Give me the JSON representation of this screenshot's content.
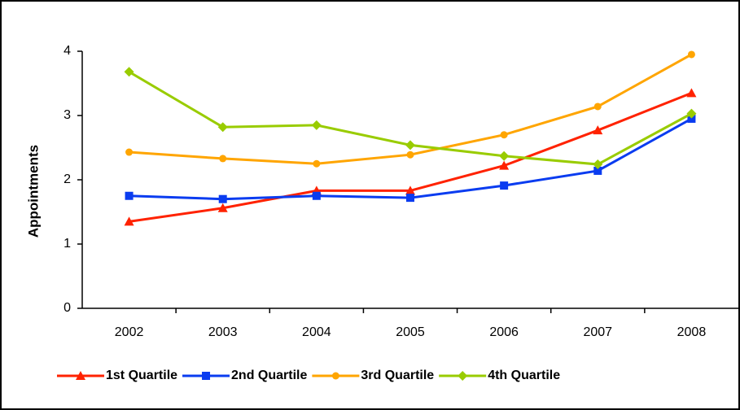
{
  "chart_data": {
    "type": "line",
    "y_label": "Appointments",
    "categories": [
      "2002",
      "2003",
      "2004",
      "2005",
      "2006",
      "2007",
      "2008"
    ],
    "series": [
      {
        "name": "1st Quartile",
        "color": "#ff2200",
        "marker": "triangle",
        "values": [
          1.35,
          1.56,
          1.83,
          1.83,
          2.22,
          2.77,
          3.35
        ]
      },
      {
        "name": "2nd Quartile",
        "color": "#0a3cf0",
        "marker": "square",
        "values": [
          1.75,
          1.7,
          1.75,
          1.72,
          1.91,
          2.14,
          2.95
        ]
      },
      {
        "name": "3rd Quartile",
        "color": "#ffa500",
        "marker": "circle",
        "values": [
          2.43,
          2.33,
          2.25,
          2.39,
          2.7,
          3.14,
          3.95
        ]
      },
      {
        "name": "4th Quartile",
        "color": "#99cc00",
        "marker": "diamond",
        "values": [
          3.68,
          2.82,
          2.85,
          2.54,
          2.37,
          2.24,
          3.03
        ]
      }
    ],
    "ylim": [
      0,
      4
    ],
    "yticks": [
      0,
      1,
      2,
      3,
      4
    ],
    "grid": false,
    "legend": "bottom"
  }
}
